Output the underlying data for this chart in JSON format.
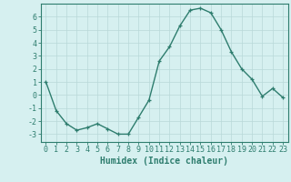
{
  "x": [
    0,
    1,
    2,
    3,
    4,
    5,
    6,
    7,
    8,
    9,
    10,
    11,
    12,
    13,
    14,
    15,
    16,
    17,
    18,
    19,
    20,
    21,
    22,
    23
  ],
  "y": [
    1,
    -1.2,
    -2.2,
    -2.7,
    -2.5,
    -2.2,
    -2.6,
    -3.0,
    -3.0,
    -1.7,
    -0.4,
    2.6,
    3.7,
    5.3,
    6.5,
    6.65,
    6.3,
    5.0,
    3.3,
    2.0,
    1.2,
    -0.1,
    0.5,
    -0.2
  ],
  "line_color": "#2e7d6e",
  "marker": "+",
  "markersize": 3,
  "linewidth": 1.0,
  "bg_color": "#d6f0f0",
  "grid_color": "#b8d8d8",
  "xlabel": "Humidex (Indice chaleur)",
  "xlabel_fontsize": 7,
  "ytick_labels": [
    "-3",
    "-2",
    "-1",
    "0",
    "1",
    "2",
    "3",
    "4",
    "5",
    "6"
  ],
  "ytick_values": [
    -3,
    -2,
    -1,
    0,
    1,
    2,
    3,
    4,
    5,
    6
  ],
  "xtick_labels": [
    "0",
    "1",
    "2",
    "3",
    "4",
    "5",
    "6",
    "7",
    "8",
    "9",
    "10",
    "11",
    "12",
    "13",
    "14",
    "15",
    "16",
    "17",
    "18",
    "19",
    "20",
    "21",
    "22",
    "23"
  ],
  "ylim": [
    -3.6,
    7.0
  ],
  "xlim": [
    -0.5,
    23.5
  ],
  "tick_fontsize": 6,
  "axis_color": "#2e7d6e",
  "spine_color": "#2e7d6e"
}
